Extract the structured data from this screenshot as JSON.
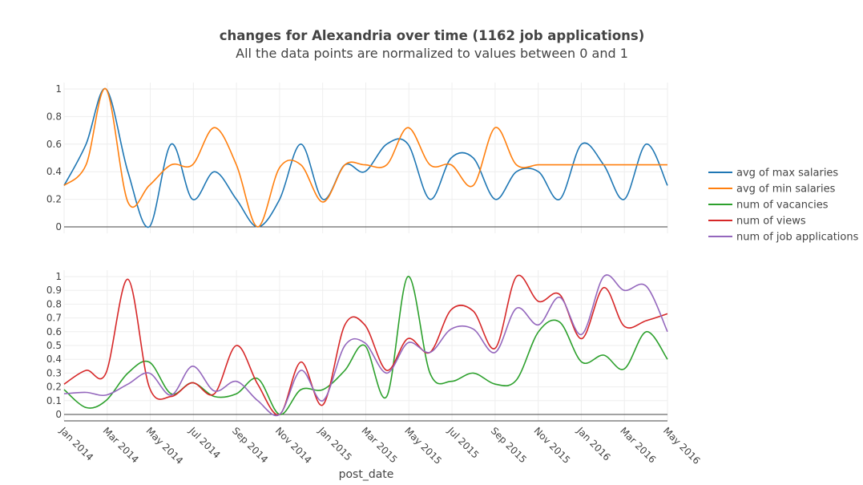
{
  "chart_data": {
    "type": "line",
    "title": "changes for Alexandria over time (1162 job applications)",
    "subtitle": "All the data points are normalized to values between 0 and 1",
    "xlabel": "post_date",
    "x_ticks": [
      "Jan 2014",
      "Mar 2014",
      "May 2014",
      "Jul 2014",
      "Sep 2014",
      "Nov 2014",
      "Jan 2015",
      "Mar 2015",
      "May 2015",
      "Jul 2015",
      "Sep 2015",
      "Nov 2015",
      "Jan 2016",
      "Mar 2016",
      "May 2016"
    ],
    "x_range": [
      "2014-01-01",
      "2016-05-01"
    ],
    "colors": {
      "avg of max salaries": "#1f77b4",
      "avg of min salaries": "#ff7f0e",
      "num of vacancies": "#2ca02c",
      "num of views": "#d62728",
      "num of job applications": "#9467bd"
    },
    "legend": [
      "avg of max salaries",
      "avg of min salaries",
      "num of vacancies",
      "num of views",
      "num of job applications"
    ],
    "legend_position": "right",
    "panels": [
      {
        "y_ticks": [
          "0",
          "0.2",
          "0.4",
          "0.6",
          "0.8",
          "1"
        ],
        "ylim": [
          0,
          1
        ],
        "series": [
          {
            "name": "avg of max salaries",
            "points": [
              [
                "2014-01-01",
                0.3
              ],
              [
                "2014-02-01",
                0.6
              ],
              [
                "2014-03-01",
                1.0
              ],
              [
                "2014-04-01",
                0.4
              ],
              [
                "2014-05-01",
                0.0
              ],
              [
                "2014-06-01",
                0.6
              ],
              [
                "2014-07-01",
                0.2
              ],
              [
                "2014-08-01",
                0.4
              ],
              [
                "2014-09-01",
                0.2
              ],
              [
                "2014-10-01",
                0.0
              ],
              [
                "2014-11-01",
                0.2
              ],
              [
                "2014-12-01",
                0.6
              ],
              [
                "2015-01-01",
                0.2
              ],
              [
                "2015-02-01",
                0.45
              ],
              [
                "2015-03-01",
                0.4
              ],
              [
                "2015-04-01",
                0.6
              ],
              [
                "2015-05-01",
                0.6
              ],
              [
                "2015-06-01",
                0.2
              ],
              [
                "2015-07-01",
                0.5
              ],
              [
                "2015-08-01",
                0.5
              ],
              [
                "2015-09-01",
                0.2
              ],
              [
                "2015-10-01",
                0.4
              ],
              [
                "2015-11-01",
                0.4
              ],
              [
                "2015-12-01",
                0.2
              ],
              [
                "2016-01-01",
                0.6
              ],
              [
                "2016-02-01",
                0.45
              ],
              [
                "2016-03-01",
                0.2
              ],
              [
                "2016-04-01",
                0.6
              ],
              [
                "2016-05-01",
                0.3
              ]
            ]
          },
          {
            "name": "avg of min salaries",
            "points": [
              [
                "2014-01-01",
                0.3
              ],
              [
                "2014-02-01",
                0.45
              ],
              [
                "2014-03-01",
                1.0
              ],
              [
                "2014-04-01",
                0.18
              ],
              [
                "2014-05-01",
                0.3
              ],
              [
                "2014-06-01",
                0.45
              ],
              [
                "2014-07-01",
                0.45
              ],
              [
                "2014-08-01",
                0.72
              ],
              [
                "2014-09-01",
                0.45
              ],
              [
                "2014-10-01",
                0.0
              ],
              [
                "2014-11-01",
                0.43
              ],
              [
                "2014-12-01",
                0.45
              ],
              [
                "2015-01-01",
                0.18
              ],
              [
                "2015-02-01",
                0.45
              ],
              [
                "2015-03-01",
                0.45
              ],
              [
                "2015-04-01",
                0.45
              ],
              [
                "2015-05-01",
                0.72
              ],
              [
                "2015-06-01",
                0.45
              ],
              [
                "2015-07-01",
                0.45
              ],
              [
                "2015-08-01",
                0.3
              ],
              [
                "2015-09-01",
                0.72
              ],
              [
                "2015-10-01",
                0.45
              ],
              [
                "2015-11-01",
                0.45
              ],
              [
                "2015-12-01",
                0.45
              ],
              [
                "2016-01-01",
                0.45
              ],
              [
                "2016-02-01",
                0.45
              ],
              [
                "2016-03-01",
                0.45
              ],
              [
                "2016-04-01",
                0.45
              ],
              [
                "2016-05-01",
                0.45
              ]
            ]
          }
        ]
      },
      {
        "y_ticks": [
          "0",
          "0.1",
          "0.2",
          "0.3",
          "0.4",
          "0.5",
          "0.6",
          "0.7",
          "0.8",
          "0.9",
          "1"
        ],
        "ylim": [
          0,
          1
        ],
        "series": [
          {
            "name": "num of vacancies",
            "points": [
              [
                "2014-01-01",
                0.18
              ],
              [
                "2014-02-01",
                0.05
              ],
              [
                "2014-03-01",
                0.1
              ],
              [
                "2014-04-01",
                0.3
              ],
              [
                "2014-05-01",
                0.38
              ],
              [
                "2014-06-01",
                0.15
              ],
              [
                "2014-07-01",
                0.23
              ],
              [
                "2014-08-01",
                0.13
              ],
              [
                "2014-09-01",
                0.15
              ],
              [
                "2014-10-01",
                0.26
              ],
              [
                "2014-11-01",
                0.0
              ],
              [
                "2014-12-01",
                0.18
              ],
              [
                "2015-01-01",
                0.18
              ],
              [
                "2015-02-01",
                0.32
              ],
              [
                "2015-03-01",
                0.5
              ],
              [
                "2015-04-01",
                0.13
              ],
              [
                "2015-05-01",
                1.0
              ],
              [
                "2015-06-01",
                0.3
              ],
              [
                "2015-07-01",
                0.24
              ],
              [
                "2015-08-01",
                0.3
              ],
              [
                "2015-09-01",
                0.22
              ],
              [
                "2015-10-01",
                0.25
              ],
              [
                "2015-11-01",
                0.6
              ],
              [
                "2015-12-01",
                0.67
              ],
              [
                "2016-01-01",
                0.38
              ],
              [
                "2016-02-01",
                0.43
              ],
              [
                "2016-03-01",
                0.33
              ],
              [
                "2016-04-01",
                0.6
              ],
              [
                "2016-05-01",
                0.4
              ]
            ]
          },
          {
            "name": "num of views",
            "points": [
              [
                "2014-01-01",
                0.22
              ],
              [
                "2014-02-01",
                0.32
              ],
              [
                "2014-03-01",
                0.3
              ],
              [
                "2014-04-01",
                0.98
              ],
              [
                "2014-05-01",
                0.2
              ],
              [
                "2014-06-01",
                0.13
              ],
              [
                "2014-07-01",
                0.23
              ],
              [
                "2014-08-01",
                0.15
              ],
              [
                "2014-09-01",
                0.5
              ],
              [
                "2014-10-01",
                0.22
              ],
              [
                "2014-11-01",
                0.0
              ],
              [
                "2014-12-01",
                0.38
              ],
              [
                "2015-01-01",
                0.07
              ],
              [
                "2015-02-01",
                0.65
              ],
              [
                "2015-03-01",
                0.65
              ],
              [
                "2015-04-01",
                0.32
              ],
              [
                "2015-05-01",
                0.55
              ],
              [
                "2015-06-01",
                0.45
              ],
              [
                "2015-07-01",
                0.76
              ],
              [
                "2015-08-01",
                0.75
              ],
              [
                "2015-09-01",
                0.48
              ],
              [
                "2015-10-01",
                1.0
              ],
              [
                "2015-11-01",
                0.82
              ],
              [
                "2015-12-01",
                0.87
              ],
              [
                "2016-01-01",
                0.55
              ],
              [
                "2016-02-01",
                0.92
              ],
              [
                "2016-03-01",
                0.64
              ],
              [
                "2016-04-01",
                0.68
              ],
              [
                "2016-05-01",
                0.73
              ]
            ]
          },
          {
            "name": "num of job applications",
            "points": [
              [
                "2014-01-01",
                0.15
              ],
              [
                "2014-02-01",
                0.16
              ],
              [
                "2014-03-01",
                0.14
              ],
              [
                "2014-04-01",
                0.22
              ],
              [
                "2014-05-01",
                0.3
              ],
              [
                "2014-06-01",
                0.14
              ],
              [
                "2014-07-01",
                0.35
              ],
              [
                "2014-08-01",
                0.17
              ],
              [
                "2014-09-01",
                0.24
              ],
              [
                "2014-10-01",
                0.1
              ],
              [
                "2014-11-01",
                0.0
              ],
              [
                "2014-12-01",
                0.32
              ],
              [
                "2015-01-01",
                0.1
              ],
              [
                "2015-02-01",
                0.5
              ],
              [
                "2015-03-01",
                0.52
              ],
              [
                "2015-04-01",
                0.3
              ],
              [
                "2015-05-01",
                0.52
              ],
              [
                "2015-06-01",
                0.45
              ],
              [
                "2015-07-01",
                0.62
              ],
              [
                "2015-08-01",
                0.62
              ],
              [
                "2015-09-01",
                0.45
              ],
              [
                "2015-10-01",
                0.77
              ],
              [
                "2015-11-01",
                0.65
              ],
              [
                "2015-12-01",
                0.85
              ],
              [
                "2016-01-01",
                0.58
              ],
              [
                "2016-02-01",
                1.0
              ],
              [
                "2016-03-01",
                0.9
              ],
              [
                "2016-04-01",
                0.93
              ],
              [
                "2016-05-01",
                0.6
              ]
            ]
          }
        ]
      }
    ]
  }
}
